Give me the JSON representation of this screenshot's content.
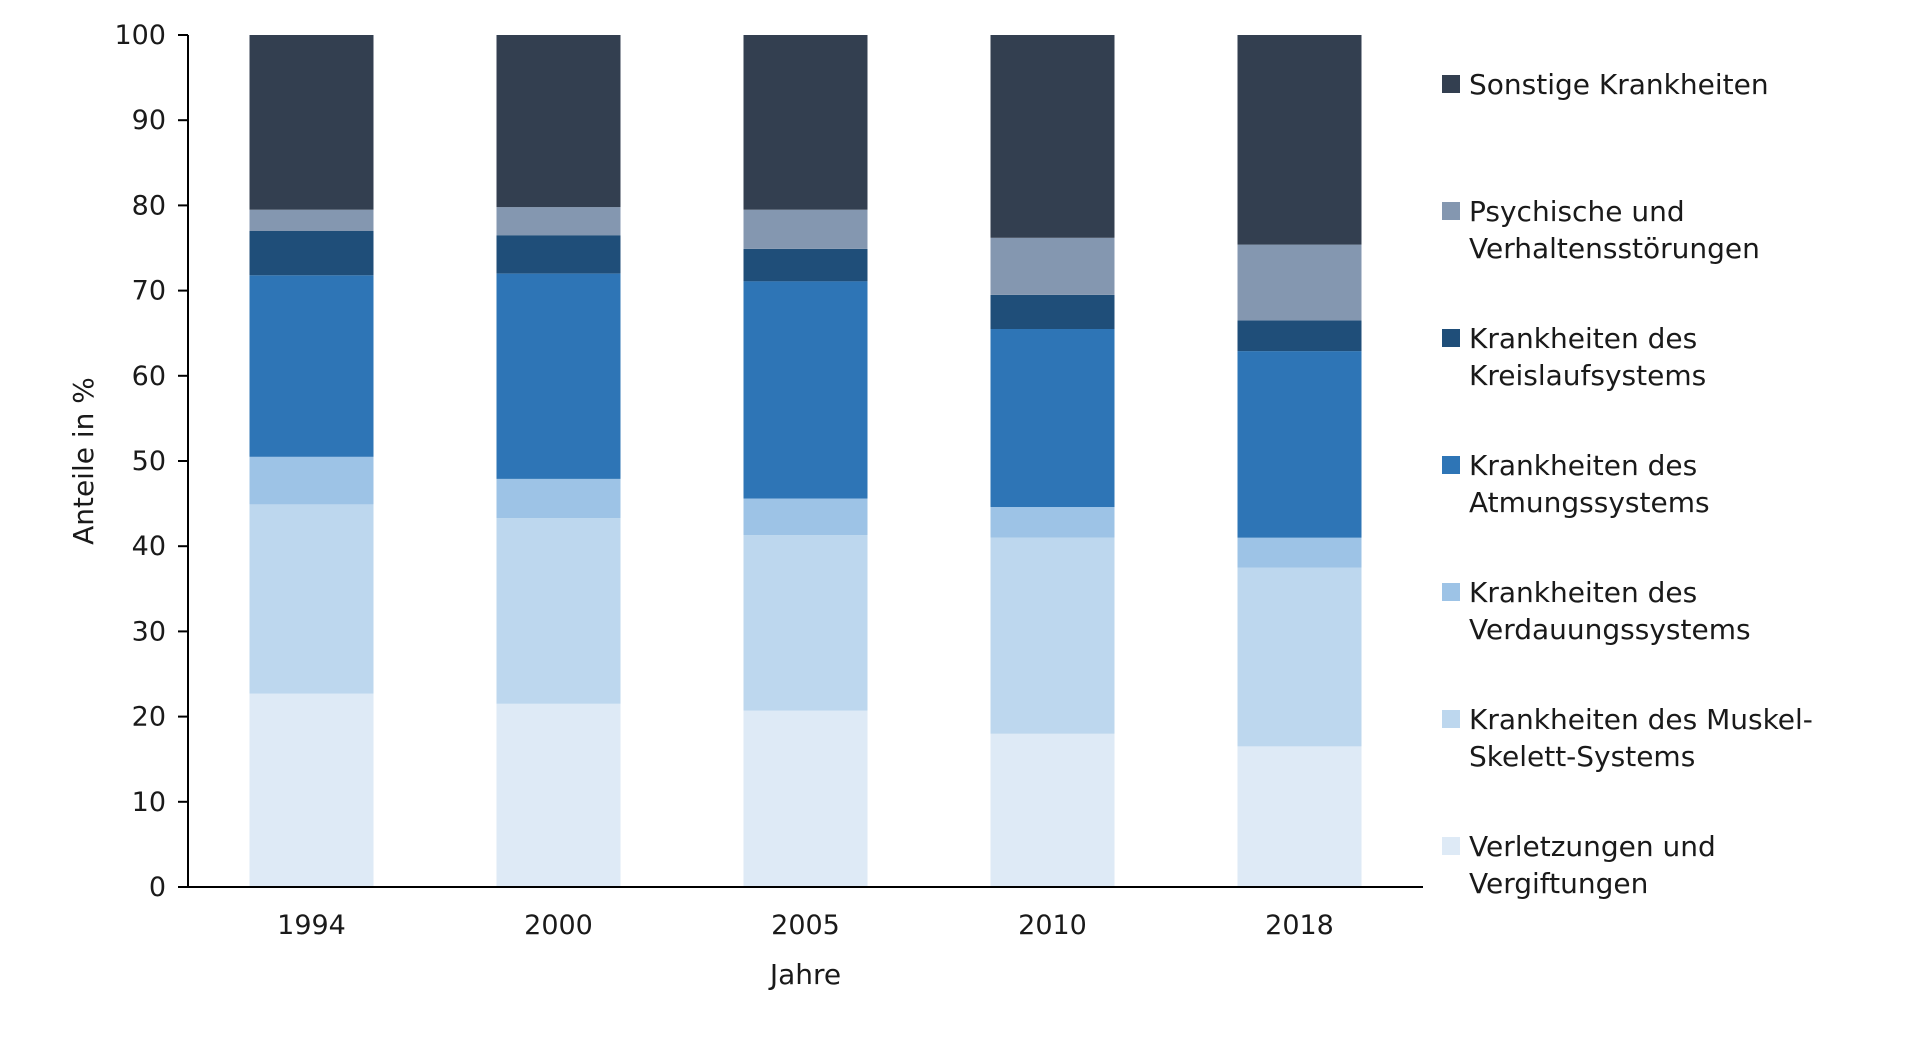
{
  "chart_data": {
    "type": "bar",
    "stacked": true,
    "categories": [
      "1994",
      "2000",
      "2005",
      "2010",
      "2018"
    ],
    "xlabel": "Jahre",
    "ylabel": "Anteile in %",
    "ylim": [
      0,
      100
    ],
    "yticks": [
      0,
      10,
      20,
      30,
      40,
      50,
      60,
      70,
      80,
      90,
      100
    ],
    "grid": false,
    "legend_position": "right",
    "series": [
      {
        "name": "Verletzungen und Vergiftungen",
        "legend_lines": [
          "Verletzungen und",
          "Vergiftungen"
        ],
        "color": "#deeaf6",
        "values": [
          22.7,
          21.5,
          20.7,
          18.0,
          16.5
        ]
      },
      {
        "name": "Krankheiten des Muskel-Skelett-Systems",
        "legend_lines": [
          "Krankheiten des Muskel-",
          "Skelett-Systems"
        ],
        "color": "#bdd7ee",
        "values": [
          22.2,
          21.8,
          20.6,
          23.0,
          21.0
        ]
      },
      {
        "name": "Krankheiten des Verdauungssystems",
        "legend_lines": [
          "Krankheiten des",
          "Verdauungssystems"
        ],
        "color": "#9dc3e6",
        "values": [
          5.6,
          4.6,
          4.3,
          3.6,
          3.5
        ]
      },
      {
        "name": "Krankheiten des Atmungssystems",
        "legend_lines": [
          "Krankheiten des",
          "Atmungssystems"
        ],
        "color": "#2e75b6",
        "values": [
          21.3,
          24.1,
          25.5,
          20.9,
          21.9
        ]
      },
      {
        "name": "Krankheiten des Kreislaufsystems",
        "legend_lines": [
          "Krankheiten des",
          "Kreislaufsystems"
        ],
        "color": "#1f4e79",
        "values": [
          5.2,
          4.5,
          3.8,
          4.0,
          3.6
        ]
      },
      {
        "name": "Psychische und Verhaltensstörungen",
        "legend_lines": [
          "Psychische und",
          "Verhaltensstörungen"
        ],
        "color": "#8497b0",
        "values": [
          2.5,
          3.3,
          4.6,
          6.7,
          8.9
        ]
      },
      {
        "name": "Sonstige Krankheiten",
        "legend_lines": [
          "Sonstige Krankheiten"
        ],
        "color": "#333f50",
        "values": [
          20.5,
          20.2,
          20.5,
          23.8,
          24.6
        ]
      }
    ]
  }
}
